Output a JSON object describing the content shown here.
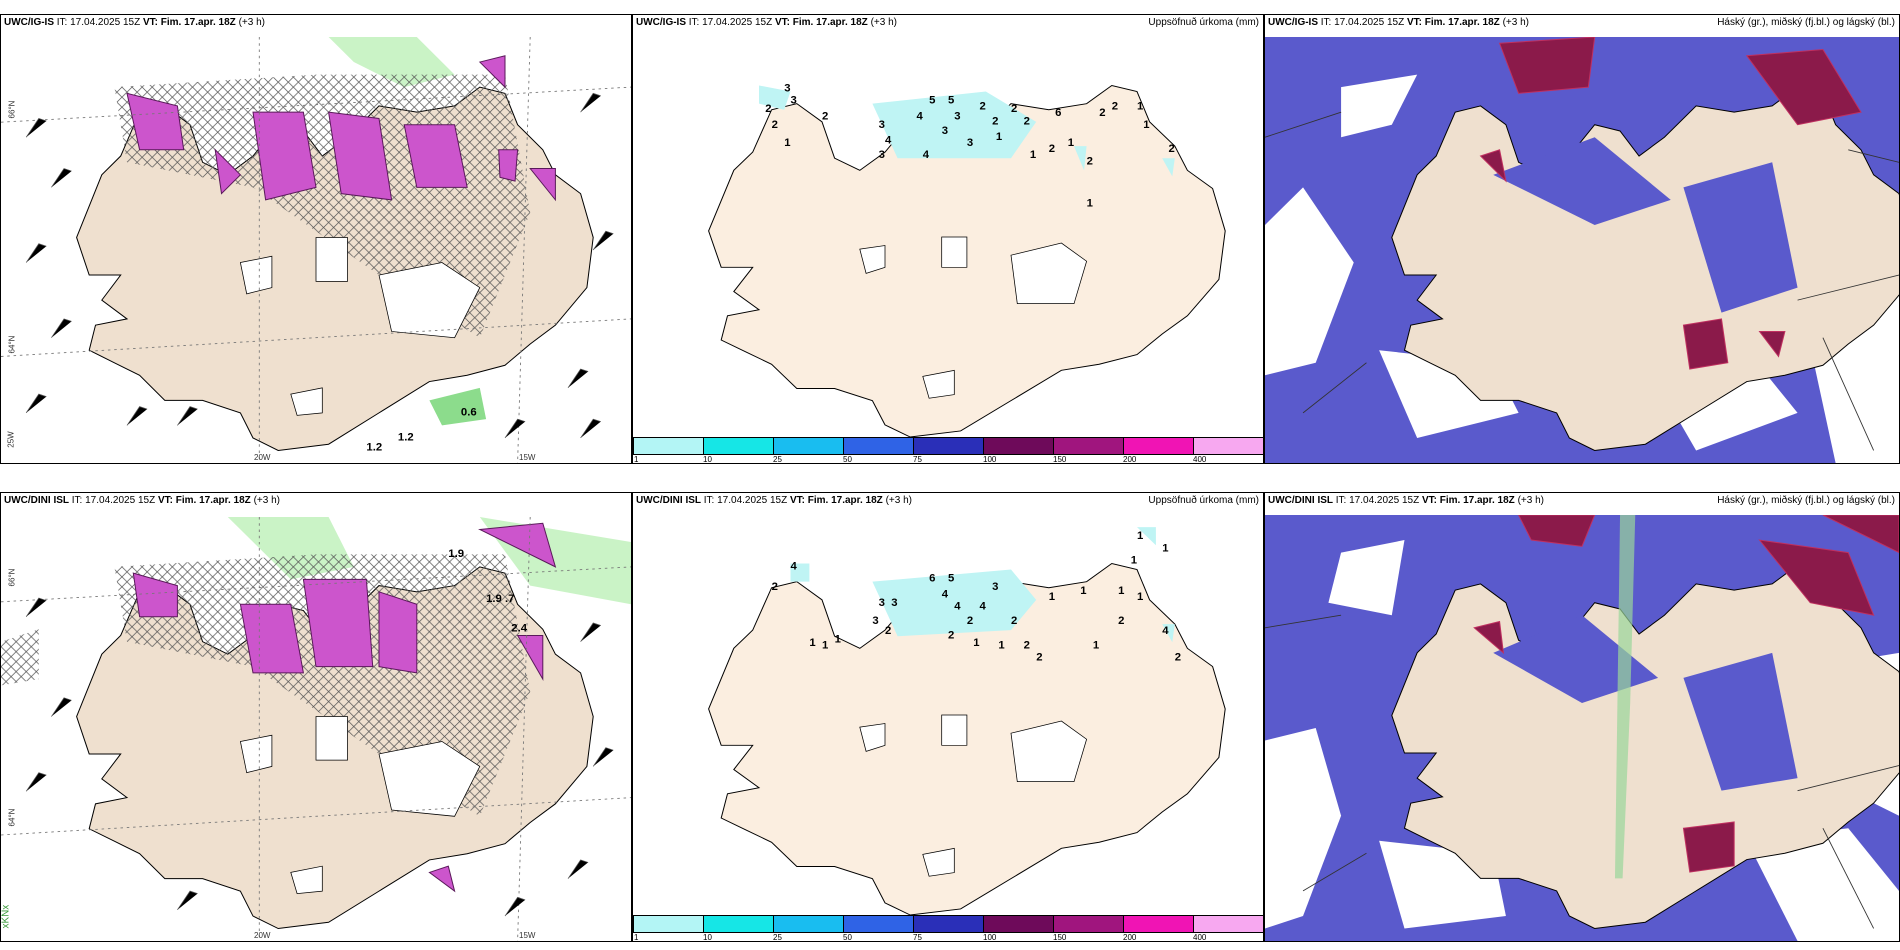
{
  "panels": {
    "top_left": {
      "model": "UWC/IG-IS",
      "it": "IT: 17.04.2025 15Z",
      "vt_label": "VT:",
      "vt": "Fim. 17.apr. 18Z",
      "lead": "(+3 h)",
      "title_right": ""
    },
    "top_mid": {
      "model": "UWC/IG-IS",
      "it": "IT: 17.04.2025 15Z",
      "vt_label": "VT:",
      "vt": "Fim. 17.apr. 18Z",
      "lead": "(+3 h)",
      "title_right": "Uppsöfnuð úrkoma (mm)"
    },
    "top_right": {
      "model": "UWC/IG-IS",
      "it": "IT: 17.04.2025 15Z",
      "vt_label": "VT:",
      "vt": "Fim. 17.apr. 18Z",
      "lead": "(+3 h)",
      "title_right": "Háský (gr.), miðský (fj.bl.) og lágský (bl.)"
    },
    "bot_left": {
      "model": "UWC/DINI ISL",
      "it": "IT: 17.04.2025 15Z",
      "vt_label": "VT:",
      "vt": "Fim. 17.apr. 18Z",
      "lead": "(+3 h)",
      "title_right": ""
    },
    "bot_mid": {
      "model": "UWC/DINI ISL",
      "it": "IT: 17.04.2025 15Z",
      "vt_label": "VT:",
      "vt": "Fim. 17.apr. 18Z",
      "lead": "(+3 h)",
      "title_right": "Uppsöfnuð úrkoma (mm)"
    },
    "bot_right": {
      "model": "UWC/DINI ISL",
      "it": "IT: 17.04.2025 15Z",
      "vt_label": "VT:",
      "vt": "Fim. 17.apr. 18Z",
      "lead": "(+3 h)",
      "title_right": "Háský (gr.), miðský (fj.bl.) og lágský (bl.)"
    }
  },
  "axis_labels": {
    "lat66": "66°N",
    "lat64": "64°N",
    "lon25": "25W",
    "lon20": "20W",
    "lon15": "15W"
  },
  "legend": {
    "ticks": [
      "1",
      "10",
      "25",
      "50",
      "75",
      "100",
      "150",
      "200",
      "400"
    ],
    "colors": [
      "#b3f5f5",
      "#16e6e6",
      "#19bdf0",
      "#2f63e6",
      "#2a2fb8",
      "#6e0a5a",
      "#a0157e",
      "#f014b4",
      "#f7a8f0"
    ]
  },
  "wind_labels_top": [
    "1.2",
    "1.2",
    "0.6"
  ],
  "wind_labels_bot": [
    "1.9",
    "1.9 .7",
    "2.4"
  ],
  "precip_top": [
    "3",
    "3",
    "2",
    "2",
    "2",
    "3",
    "4",
    "3",
    "5",
    "4",
    "5",
    "3",
    "3",
    "2",
    "2",
    "2",
    "2",
    "1",
    "6",
    "2",
    "1",
    "1",
    "2",
    "2",
    "1",
    "2",
    "1",
    "4",
    "3",
    "2",
    "1",
    "1"
  ],
  "precip_bot": [
    "4",
    "2",
    "3",
    "3",
    "3",
    "6",
    "5",
    "4",
    "4",
    "3",
    "4",
    "2",
    "1",
    "1",
    "2",
    "1",
    "2",
    "1",
    "1",
    "1",
    "2",
    "1",
    "4",
    "2",
    "1",
    "1",
    "1",
    "1",
    "2",
    "2",
    "2",
    "1",
    "1"
  ],
  "misc_bottom_left": "xKNx"
}
